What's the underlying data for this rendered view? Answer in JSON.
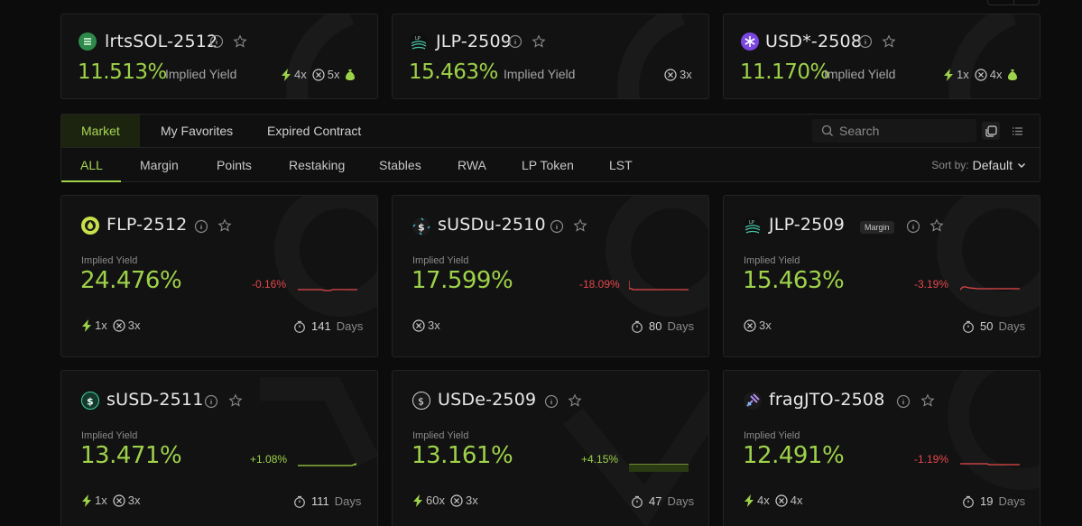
{
  "featured": [
    {
      "name": "lrtsSOL-2512",
      "icon": "lrtssol-token-icon",
      "yield": "11.513%",
      "yield_label": "Implied Yield",
      "mults": [
        {
          "kind": "bolt",
          "text": "4x"
        },
        {
          "kind": "x",
          "text": "5x"
        },
        {
          "kind": "bag",
          "text": ""
        }
      ]
    },
    {
      "name": "JLP-2509",
      "icon": "jlp-token-icon",
      "yield": "15.463%",
      "yield_label": "Implied Yield",
      "mults": [
        {
          "kind": "x",
          "text": "3x"
        }
      ]
    },
    {
      "name": "USD*-2508",
      "icon": "usdstar-token-icon",
      "yield": "11.170%",
      "yield_label": "Implied Yield",
      "mults": [
        {
          "kind": "bolt",
          "text": "1x"
        },
        {
          "kind": "x",
          "text": "4x"
        },
        {
          "kind": "bag",
          "text": ""
        }
      ]
    }
  ],
  "tabs": {
    "main": [
      "Market",
      "My Favorites",
      "Expired Contract"
    ],
    "categories": [
      "ALL",
      "Margin",
      "Points",
      "Restaking",
      "Stables",
      "RWA",
      "LP Token",
      "LST"
    ],
    "search_placeholder": "Search",
    "sort_label": "Sort by:",
    "sort_value": "Default"
  },
  "markets": [
    {
      "name": "FLP-2512",
      "icon": "flp-token-icon",
      "badge": "",
      "yield_label": "Implied Yield",
      "yield": "24.476%",
      "change": "-0.16%",
      "trend": "down",
      "mults": [
        {
          "kind": "bolt",
          "text": "1x"
        },
        {
          "kind": "x",
          "text": "3x"
        }
      ],
      "days": "141",
      "days_unit": "Days"
    },
    {
      "name": "sUSDu-2510",
      "icon": "susdu-token-icon",
      "badge": "",
      "yield_label": "Implied Yield",
      "yield": "17.599%",
      "change": "-18.09%",
      "trend": "down",
      "mults": [
        {
          "kind": "x",
          "text": "3x"
        }
      ],
      "days": "80",
      "days_unit": "Days"
    },
    {
      "name": "JLP-2509",
      "icon": "jlp-token-icon",
      "badge": "Margin",
      "yield_label": "Implied Yield",
      "yield": "15.463%",
      "change": "-3.19%",
      "trend": "down",
      "mults": [
        {
          "kind": "x",
          "text": "3x"
        }
      ],
      "days": "50",
      "days_unit": "Days"
    },
    {
      "name": "sUSD-2511",
      "icon": "susd-token-icon",
      "badge": "",
      "yield_label": "Implied Yield",
      "yield": "13.471%",
      "change": "+1.08%",
      "trend": "up",
      "mults": [
        {
          "kind": "bolt",
          "text": "1x"
        },
        {
          "kind": "x",
          "text": "3x"
        }
      ],
      "days": "111",
      "days_unit": "Days"
    },
    {
      "name": "USDe-2509",
      "icon": "usde-token-icon",
      "badge": "",
      "yield_label": "Implied Yield",
      "yield": "13.161%",
      "change": "+4.15%",
      "trend": "up",
      "mults": [
        {
          "kind": "bolt",
          "text": "60x"
        },
        {
          "kind": "x",
          "text": "3x"
        }
      ],
      "days": "47",
      "days_unit": "Days"
    },
    {
      "name": "fragJTO-2508",
      "icon": "fragjto-token-icon",
      "badge": "",
      "yield_label": "Implied Yield",
      "yield": "12.491%",
      "change": "-1.19%",
      "trend": "down",
      "mults": [
        {
          "kind": "bolt",
          "text": "4x"
        },
        {
          "kind": "x",
          "text": "4x"
        }
      ],
      "days": "19",
      "days_unit": "Days"
    }
  ],
  "colors": {
    "accent": "#9ed24a",
    "negative": "#e5484d",
    "positive": "#9ed24a",
    "bg": "#0c0c0c",
    "card": "#121212"
  }
}
